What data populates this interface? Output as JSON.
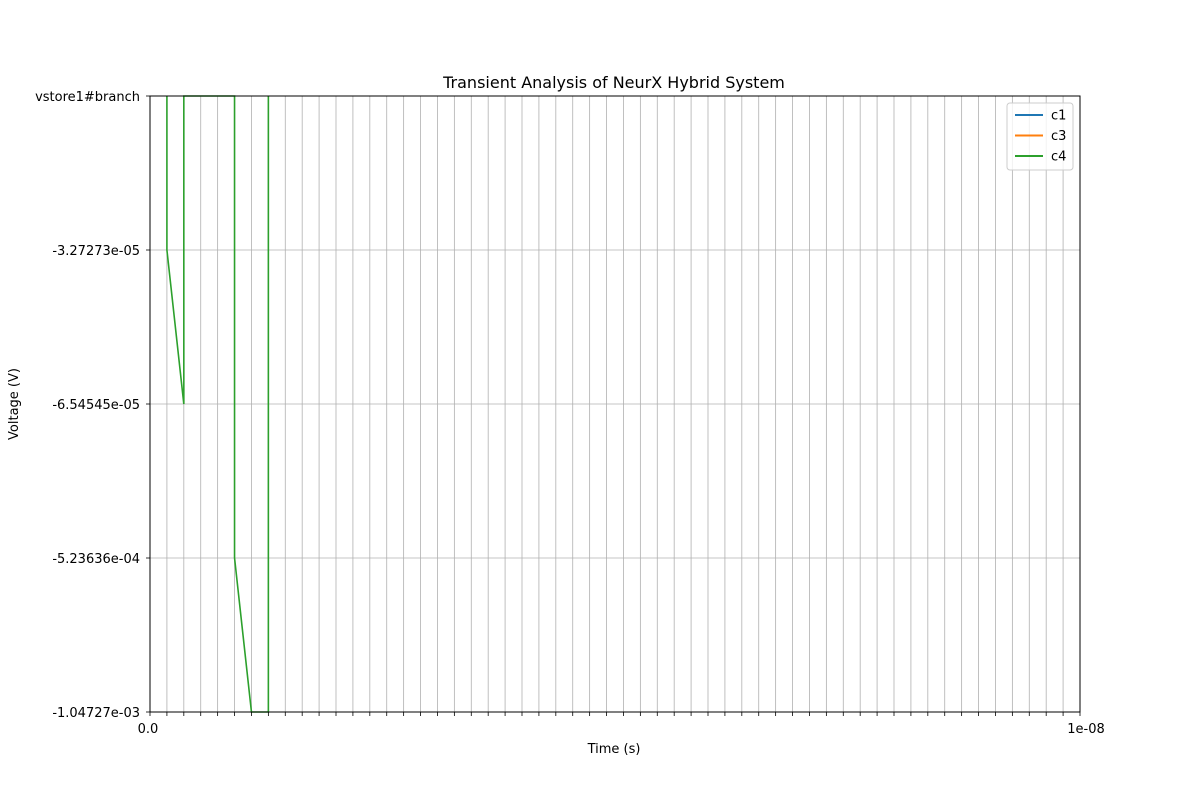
{
  "chart_data": {
    "type": "line",
    "title": "Transient Analysis of NeurX Hybrid System",
    "xlabel": "Time (s)",
    "ylabel": "Voltage (V)",
    "grid": true,
    "legend_position": "top-right",
    "x_tick_count": 56,
    "x_tick_labels_visible": {
      "first": "0.0",
      "last": "1e-08"
    },
    "y_categories": [
      "-1.04727e-03",
      "-5.23636e-04",
      "-6.54545e-05",
      "-3.27273e-05",
      "vstore1#branch"
    ],
    "series": [
      {
        "name": "c1",
        "color": "#1f77b4",
        "points": []
      },
      {
        "name": "c3",
        "color": "#ff7f0e",
        "points": []
      },
      {
        "name": "c4",
        "color": "#2ca02c",
        "points": [
          {
            "x": 1,
            "y": 4
          },
          {
            "x": 1,
            "y": 3
          },
          {
            "x": 2,
            "y": 2
          },
          {
            "x": 2,
            "y": 4
          },
          {
            "x": 2,
            "y": 4
          },
          {
            "x": 5,
            "y": 4
          },
          {
            "x": 5,
            "y": 1
          },
          {
            "x": 6,
            "y": 0
          },
          {
            "x": 6,
            "y": 0
          },
          {
            "x": 7,
            "y": 0
          },
          {
            "x": 7,
            "y": 4
          }
        ]
      }
    ]
  }
}
